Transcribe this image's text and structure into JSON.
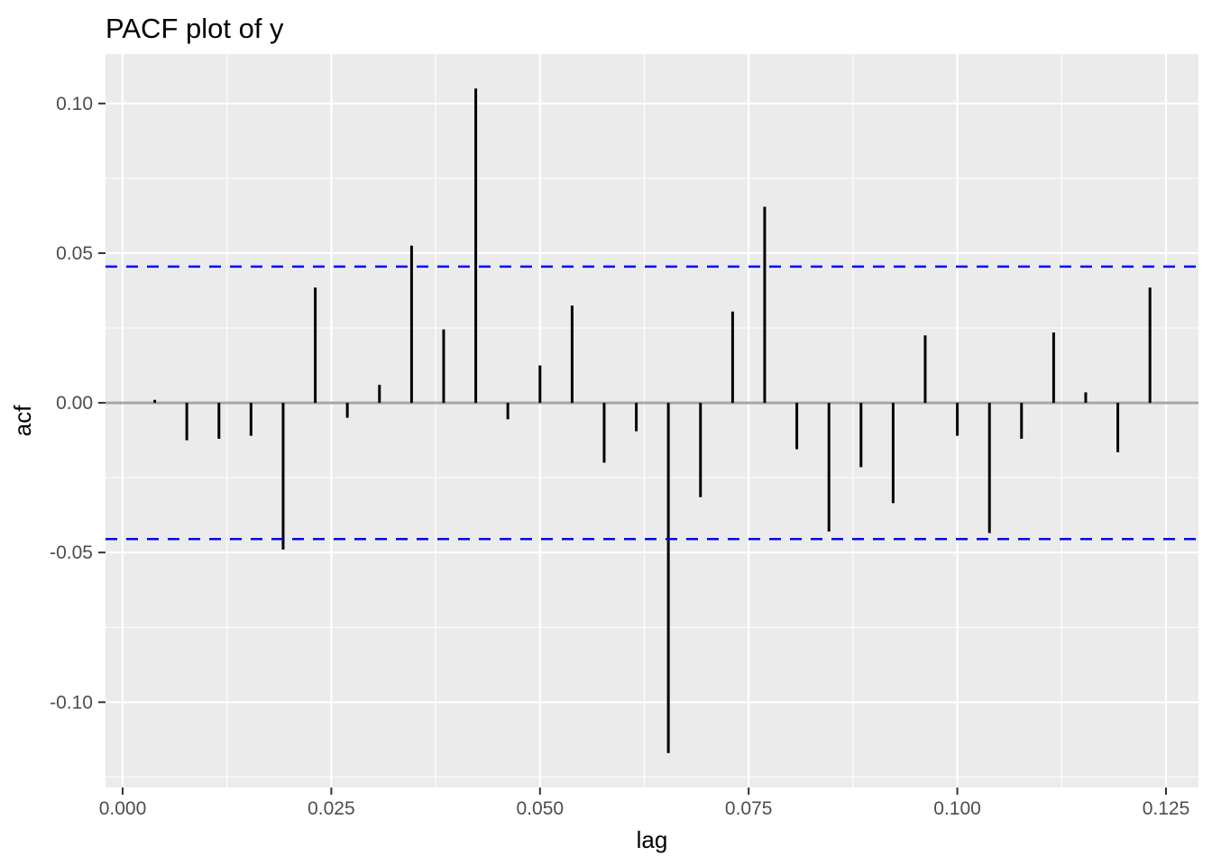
{
  "colors": {
    "background": "#FFFFFF",
    "panel_bg": "#EBEBEB",
    "grid": "#FFFFFF",
    "bar": "#000000",
    "zero_line": "#A6A6A6",
    "conf_line": "#0000FF",
    "tick": "#333333",
    "tick_label": "#4D4D4D",
    "title_color": "#000000"
  },
  "chart_data": {
    "type": "bar",
    "title": "PACF plot of y",
    "xlabel": "lag",
    "ylabel": "acf",
    "grid": true,
    "legend": false,
    "xlim": [
      -0.00205,
      0.12889
    ],
    "ylim": [
      -0.1285,
      0.1165
    ],
    "x_ticks": {
      "values": [
        0.0,
        0.025,
        0.05,
        0.075,
        0.1,
        0.125
      ],
      "labels": [
        "0.000",
        "0.025",
        "0.050",
        "0.075",
        "0.100",
        "0.125"
      ]
    },
    "y_ticks": {
      "values": [
        -0.1,
        -0.05,
        0.0,
        0.05,
        0.1
      ],
      "labels": [
        "-0.10",
        "-0.05",
        "0.00",
        "0.05",
        "0.10"
      ]
    },
    "zero_line": 0.0,
    "conf_bounds": {
      "upper": 0.0455,
      "lower": -0.0455
    },
    "series": [
      {
        "name": "pacf",
        "x": [
          0.00385,
          0.00769,
          0.01154,
          0.01538,
          0.01923,
          0.02308,
          0.02692,
          0.03077,
          0.03462,
          0.03846,
          0.04231,
          0.04615,
          0.05,
          0.05385,
          0.05769,
          0.06154,
          0.06538,
          0.06923,
          0.07308,
          0.07692,
          0.08077,
          0.08462,
          0.08846,
          0.09231,
          0.09615,
          0.1,
          0.10385,
          0.10769,
          0.11154,
          0.11538,
          0.11923,
          0.12308
        ],
        "y": [
          0.001,
          -0.0125,
          -0.012,
          -0.011,
          -0.049,
          0.0385,
          -0.005,
          0.006,
          0.0525,
          0.0245,
          0.105,
          -0.0055,
          0.0125,
          0.0325,
          -0.02,
          -0.0095,
          -0.117,
          -0.0315,
          0.0305,
          0.0655,
          -0.0155,
          -0.043,
          -0.0215,
          -0.0335,
          0.0225,
          -0.011,
          -0.0435,
          -0.012,
          0.0235,
          0.0035,
          -0.0165,
          0.0385
        ]
      }
    ]
  }
}
